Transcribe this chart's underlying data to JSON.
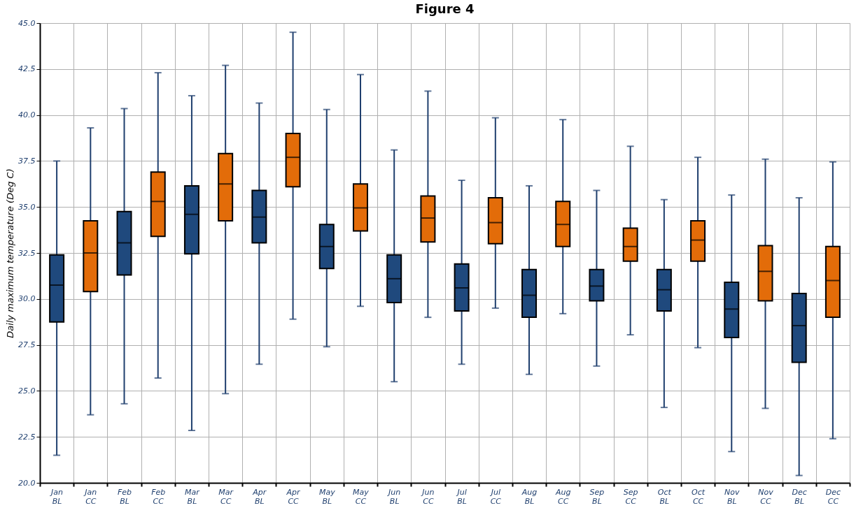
{
  "chart_data": {
    "type": "box",
    "title": "Figure 4",
    "ylabel": "Daily maximum temperature (Deg C)",
    "categories": [
      "Jan BL",
      "Jan CC",
      "Feb BL",
      "Feb CC",
      "Mar BL",
      "Mar CC",
      "Apr BL",
      "Apr CC",
      "May BL",
      "May CC",
      "Jun BL",
      "Jun CC",
      "Jul BL",
      "Jul CC",
      "Aug BL",
      "Aug CC",
      "Sep BL",
      "Sep CC",
      "Oct BL",
      "Oct CC",
      "Nov BL",
      "Nov CC",
      "Dec BL",
      "Dec CC"
    ],
    "boxes": [
      {
        "low": 21.5,
        "q1": 28.75,
        "median": 30.75,
        "q3": 32.4,
        "high": 37.5
      },
      {
        "low": 23.7,
        "q1": 30.4,
        "median": 32.5,
        "q3": 34.25,
        "high": 39.3
      },
      {
        "low": 24.3,
        "q1": 31.3,
        "median": 33.05,
        "q3": 34.75,
        "high": 40.35
      },
      {
        "low": 25.7,
        "q1": 33.4,
        "median": 35.3,
        "q3": 36.9,
        "high": 42.3
      },
      {
        "low": 22.85,
        "q1": 32.45,
        "median": 34.6,
        "q3": 36.15,
        "high": 41.05
      },
      {
        "low": 24.85,
        "q1": 34.25,
        "median": 36.25,
        "q3": 37.9,
        "high": 42.7
      },
      {
        "low": 26.45,
        "q1": 33.05,
        "median": 34.45,
        "q3": 35.9,
        "high": 40.65
      },
      {
        "low": 28.9,
        "q1": 36.1,
        "median": 37.7,
        "q3": 39.0,
        "high": 44.5
      },
      {
        "low": 27.4,
        "q1": 31.65,
        "median": 32.85,
        "q3": 34.05,
        "high": 40.3
      },
      {
        "low": 29.6,
        "q1": 33.7,
        "median": 34.95,
        "q3": 36.25,
        "high": 42.2
      },
      {
        "low": 25.5,
        "q1": 29.8,
        "median": 31.1,
        "q3": 32.4,
        "high": 38.1
      },
      {
        "low": 29.0,
        "q1": 33.1,
        "median": 34.4,
        "q3": 35.6,
        "high": 41.3
      },
      {
        "low": 26.45,
        "q1": 29.35,
        "median": 30.6,
        "q3": 31.9,
        "high": 36.45
      },
      {
        "low": 29.5,
        "q1": 33.0,
        "median": 34.15,
        "q3": 35.5,
        "high": 39.85
      },
      {
        "low": 25.9,
        "q1": 29.0,
        "median": 30.2,
        "q3": 31.6,
        "high": 36.15
      },
      {
        "low": 29.2,
        "q1": 32.85,
        "median": 34.05,
        "q3": 35.3,
        "high": 39.75
      },
      {
        "low": 26.35,
        "q1": 29.9,
        "median": 30.7,
        "q3": 31.6,
        "high": 35.9
      },
      {
        "low": 28.05,
        "q1": 32.05,
        "median": 32.85,
        "q3": 33.85,
        "high": 38.3
      },
      {
        "low": 24.1,
        "q1": 29.35,
        "median": 30.5,
        "q3": 31.6,
        "high": 35.4
      },
      {
        "low": 27.35,
        "q1": 32.05,
        "median": 33.2,
        "q3": 34.25,
        "high": 37.7
      },
      {
        "low": 21.7,
        "q1": 27.9,
        "median": 29.45,
        "q3": 30.9,
        "high": 35.65
      },
      {
        "low": 24.05,
        "q1": 29.9,
        "median": 31.5,
        "q3": 32.9,
        "high": 37.6
      },
      {
        "low": 20.4,
        "q1": 26.55,
        "median": 28.55,
        "q3": 30.3,
        "high": 35.5
      },
      {
        "low": 22.4,
        "q1": 29.0,
        "median": 31.0,
        "q3": 32.85,
        "high": 37.45
      }
    ],
    "color": "#1f3f6e",
    "colors": [
      "#1f497d",
      "#e36c09",
      "#1f497d",
      "#e36c09",
      "#1f497d",
      "#e36c09",
      "#1f497d",
      "#e36c09",
      "#1f497d",
      "#e36c09",
      "#1f497d",
      "#e36c09",
      "#1f497d",
      "#e36c09",
      "#1f497d",
      "#e36c09",
      "#1f497d",
      "#e36c09",
      "#1f497d",
      "#e36c09",
      "#1f497d",
      "#e36c09",
      "#1f497d",
      "#e36c09"
    ],
    "ylim": [
      20,
      45
    ],
    "yticks": [
      {
        "value": 20,
        "label": "20.0"
      },
      {
        "value": 22.5,
        "label": "22.5"
      },
      {
        "value": 25,
        "label": "25.0"
      },
      {
        "value": 27.5,
        "label": "27.5"
      },
      {
        "value": 30,
        "label": "30.0"
      },
      {
        "value": 32.5,
        "label": "32.5"
      },
      {
        "value": 35,
        "label": "35.0"
      },
      {
        "value": 37.5,
        "label": "37.5"
      },
      {
        "value": 40,
        "label": "40.0"
      },
      {
        "value": 42.5,
        "label": "42.5"
      },
      {
        "value": 45,
        "label": "45.0"
      }
    ],
    "grid": true
  }
}
